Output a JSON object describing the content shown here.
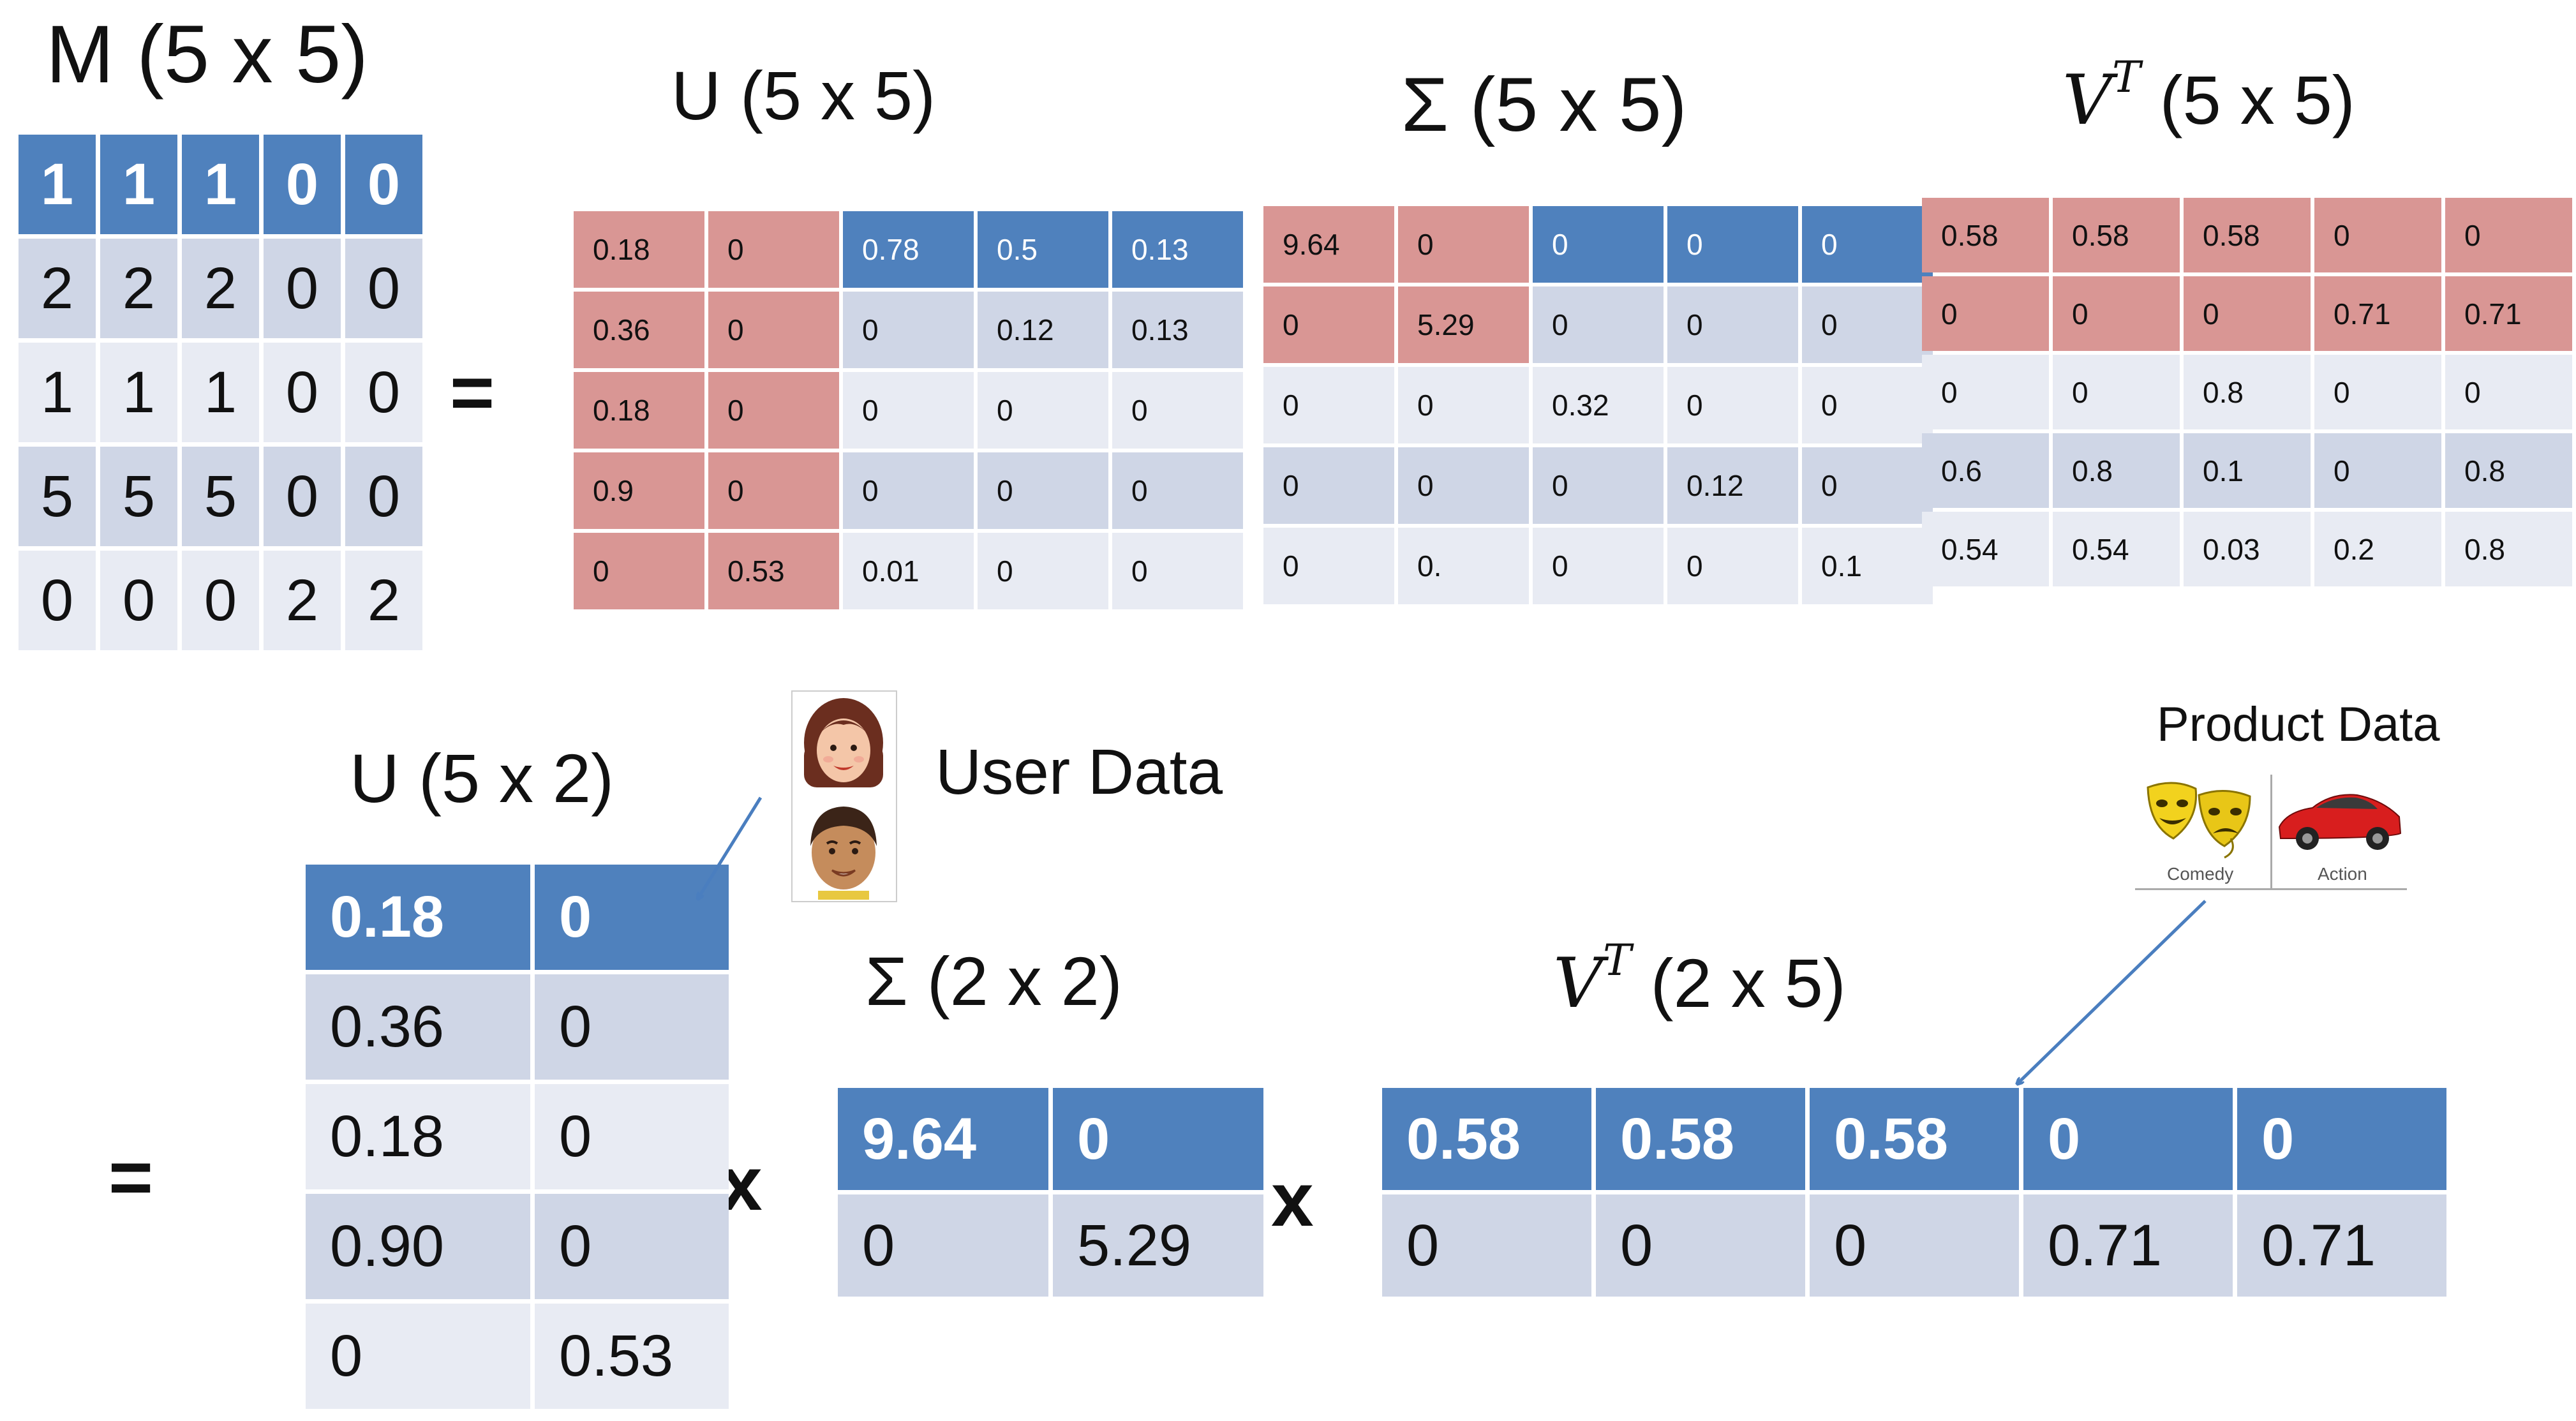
{
  "titles": {
    "m": "M (5 x 5)",
    "u5": "U (5 x 5)",
    "s5": "Σ (5 x 5)",
    "vt5_v": "V",
    "vt5_sup": "T",
    "vt5_dims": " (5 x 5)",
    "u2": "U (5 x 2)",
    "s2": "Σ (2 x 2)",
    "vt2_v": "V",
    "vt2_sup": "T",
    "vt2_dims": " (2 x 5)"
  },
  "operators": {
    "equals": "=",
    "times": "x"
  },
  "labels": {
    "user_data": "User Data",
    "product_data": "Product Data",
    "comedy": "Comedy",
    "action": "Action"
  },
  "colors": {
    "blue": "#4f81bd",
    "red": "#d99694",
    "gray_dark": "#cfd6e6",
    "gray_light": "#e8ebf3",
    "arrow": "#4a7ebf"
  },
  "matrices": {
    "m": {
      "rows": [
        [
          "1",
          "1",
          "1",
          "0",
          "0"
        ],
        [
          "2",
          "2",
          "2",
          "0",
          "0"
        ],
        [
          "1",
          "1",
          "1",
          "0",
          "0"
        ],
        [
          "5",
          "5",
          "5",
          "0",
          "0"
        ],
        [
          "0",
          "0",
          "0",
          "2",
          "2"
        ]
      ]
    },
    "u5": {
      "rows": [
        [
          "0.18",
          "0",
          "0.78",
          "0.5",
          "0.13"
        ],
        [
          "0.36",
          "0",
          "0",
          "0.12",
          "0.13"
        ],
        [
          "0.18",
          "0",
          "0",
          "0",
          "0"
        ],
        [
          "0.9",
          "0",
          "0",
          "0",
          "0"
        ],
        [
          "0",
          "0.53",
          "0.01",
          "0",
          "0"
        ]
      ]
    },
    "s5": {
      "rows": [
        [
          "9.64",
          "0",
          "0",
          "0",
          "0"
        ],
        [
          "0",
          "5.29",
          "0",
          "0",
          "0"
        ],
        [
          "0",
          "0",
          "0.32",
          "0",
          "0"
        ],
        [
          "0",
          "0",
          "0",
          "0.12",
          "0"
        ],
        [
          "0",
          "0.",
          "0",
          "0",
          "0.1"
        ]
      ]
    },
    "vt5": {
      "rows": [
        [
          "0.58",
          "0.58",
          "0.58",
          "0",
          "0"
        ],
        [
          "0",
          "0",
          "0",
          "0.71",
          "0.71"
        ],
        [
          "0",
          "0",
          "0.8",
          "0",
          "0"
        ],
        [
          "0.6",
          "0.8",
          "0.1",
          "0",
          "0.8"
        ],
        [
          "0.54",
          "0.54",
          "0.03",
          "0.2",
          "0.8"
        ]
      ]
    },
    "u2": {
      "rows": [
        [
          "0.18",
          "0"
        ],
        [
          "0.36",
          "0"
        ],
        [
          "0.18",
          "0"
        ],
        [
          "0.90",
          "0"
        ],
        [
          "0",
          "0.53"
        ]
      ]
    },
    "s2": {
      "rows": [
        [
          "9.64",
          "0"
        ],
        [
          "0",
          "5.29"
        ]
      ]
    },
    "vt2": {
      "rows": [
        [
          "0.58",
          "0.58",
          "0.58",
          "0",
          "0"
        ],
        [
          "0",
          "0",
          "0",
          "0.71",
          "0.71"
        ]
      ]
    }
  }
}
